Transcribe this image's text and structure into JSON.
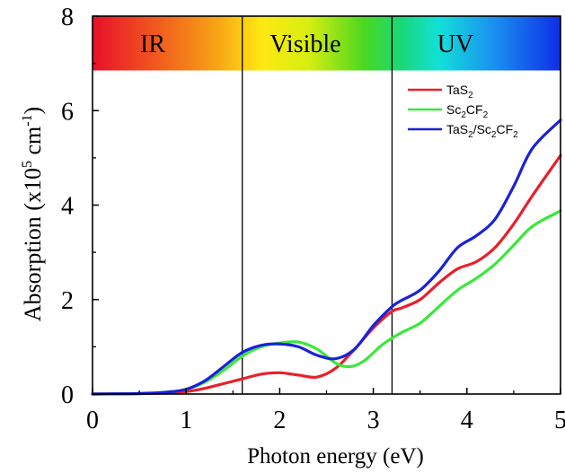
{
  "chart_data": {
    "type": "line",
    "xlabel": "Photon energy (eV)",
    "ylabel": "Absorption (x10",
    "ylabel_exp": "5",
    "ylabel_unit_mid": " cm",
    "ylabel_unit_exp": "-1",
    "ylabel_close": ")",
    "xlim": [
      0,
      5
    ],
    "ylim": [
      0,
      8
    ],
    "x_ticks": [
      "0",
      "1",
      "2",
      "3",
      "4",
      "5"
    ],
    "y_ticks": [
      "0",
      "2",
      "4",
      "6",
      "8"
    ],
    "grid": false,
    "legend_position": "top-right",
    "bands": [
      {
        "label": "IR",
        "from": 0,
        "to": 1.6
      },
      {
        "label": "Visible",
        "from": 1.6,
        "to": 3.2
      },
      {
        "label": "UV",
        "from": 3.2,
        "to": 5
      }
    ],
    "band_top": 8,
    "band_bottom": 6.85,
    "series": [
      {
        "name": "TaS2",
        "legend_parts": [
          [
            "TaS",
            ""
          ],
          [
            "2",
            "sub"
          ]
        ],
        "color": "#e8202a",
        "x": [
          0,
          0.5,
          0.8,
          1.0,
          1.2,
          1.4,
          1.6,
          1.8,
          2.0,
          2.2,
          2.4,
          2.6,
          2.8,
          3.0,
          3.2,
          3.3,
          3.5,
          3.7,
          3.9,
          4.1,
          4.3,
          4.5,
          4.7,
          5.0
        ],
        "y": [
          0,
          0.01,
          0.02,
          0.05,
          0.12,
          0.22,
          0.32,
          0.42,
          0.45,
          0.4,
          0.36,
          0.55,
          0.95,
          1.4,
          1.75,
          1.82,
          2.0,
          2.35,
          2.65,
          2.8,
          3.1,
          3.6,
          4.2,
          5.05
        ]
      },
      {
        "name": "Sc2CF2",
        "legend_parts": [
          [
            "Sc",
            ""
          ],
          [
            "2",
            "sub"
          ],
          [
            "CF",
            ""
          ],
          [
            "2",
            "sub"
          ]
        ],
        "color": "#3ae83a",
        "x": [
          0,
          0.5,
          0.8,
          1.0,
          1.2,
          1.4,
          1.6,
          1.8,
          2.0,
          2.2,
          2.4,
          2.6,
          2.75,
          2.9,
          3.1,
          3.3,
          3.5,
          3.7,
          3.9,
          4.1,
          4.3,
          4.5,
          4.7,
          5.0
        ],
        "y": [
          0,
          0.01,
          0.04,
          0.1,
          0.25,
          0.5,
          0.8,
          1.0,
          1.08,
          1.1,
          0.95,
          0.65,
          0.58,
          0.7,
          1.05,
          1.3,
          1.5,
          1.85,
          2.2,
          2.45,
          2.75,
          3.15,
          3.55,
          3.88
        ]
      },
      {
        "name": "TaS2/Sc2CF2",
        "legend_parts": [
          [
            "TaS",
            ""
          ],
          [
            "2",
            "sub"
          ],
          [
            "/Sc",
            ""
          ],
          [
            "2",
            "sub"
          ],
          [
            "CF",
            ""
          ],
          [
            "2",
            "sub"
          ]
        ],
        "color": "#1a22d8",
        "x": [
          0,
          0.5,
          0.8,
          1.0,
          1.2,
          1.4,
          1.6,
          1.8,
          2.0,
          2.2,
          2.4,
          2.6,
          2.8,
          3.0,
          3.2,
          3.3,
          3.5,
          3.7,
          3.9,
          4.1,
          4.3,
          4.5,
          4.7,
          5.0
        ],
        "y": [
          0,
          0.01,
          0.04,
          0.1,
          0.28,
          0.58,
          0.88,
          1.03,
          1.06,
          1.0,
          0.82,
          0.75,
          0.95,
          1.45,
          1.85,
          1.98,
          2.2,
          2.6,
          3.1,
          3.35,
          3.7,
          4.4,
          5.2,
          5.8
        ]
      }
    ]
  }
}
